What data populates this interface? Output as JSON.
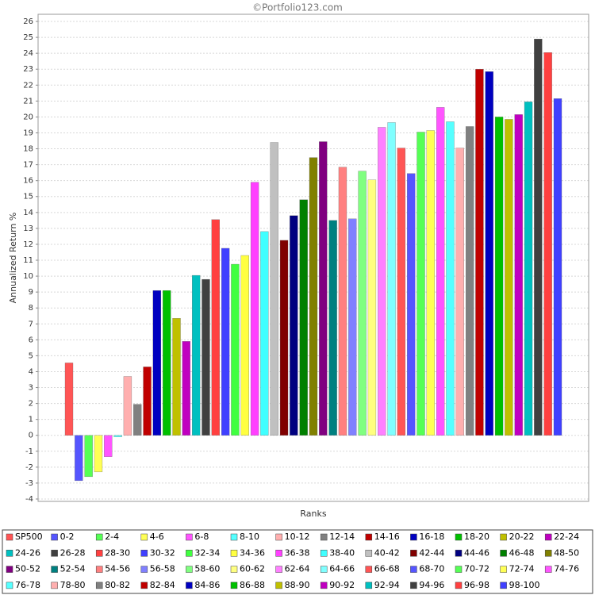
{
  "chart_data": {
    "type": "bar",
    "title": "©Portfolio123.com",
    "x_label": "Ranks",
    "y_label": "Annualized Return %",
    "categories": [
      "SP500",
      "0-2",
      "2-4",
      "4-6",
      "6-8",
      "8-10",
      "10-12",
      "12-14",
      "14-16",
      "16-18",
      "18-20",
      "20-22",
      "22-24",
      "24-26",
      "26-28",
      "28-30",
      "30-32",
      "32-34",
      "34-36",
      "36-38",
      "38-40",
      "40-42",
      "42-44",
      "44-46",
      "46-48",
      "48-50",
      "50-52",
      "52-54",
      "54-56",
      "56-58",
      "58-60",
      "60-62",
      "62-64",
      "64-66",
      "66-68",
      "68-70",
      "70-72",
      "72-74",
      "74-76",
      "76-78",
      "78-80",
      "80-82",
      "82-84",
      "84-86",
      "86-88",
      "88-90",
      "90-92",
      "92-94",
      "94-96",
      "96-98",
      "98-100"
    ],
    "values": [
      4.55,
      -2.85,
      -2.6,
      -2.3,
      -1.35,
      -0.1,
      3.7,
      1.95,
      4.3,
      9.1,
      9.1,
      7.35,
      5.9,
      10.05,
      9.8,
      13.55,
      11.75,
      10.75,
      11.3,
      15.9,
      12.8,
      18.4,
      12.25,
      13.8,
      14.8,
      17.45,
      18.45,
      13.5,
      16.85,
      13.6,
      16.6,
      16.05,
      19.35,
      19.65,
      18.05,
      16.45,
      19.05,
      19.15,
      20.6,
      19.7,
      18.05,
      19.4,
      23.0,
      22.85,
      20.0,
      19.85,
      20.15,
      20.95,
      24.9,
      24.05,
      21.15
    ],
    "colors": [
      "#FF5555",
      "#5555FF",
      "#55FF55",
      "#FFFF55",
      "#FF55FF",
      "#55FFFF",
      "#FFAFAF",
      "#808080",
      "#C00000",
      "#0000C0",
      "#00C000",
      "#C0C000",
      "#C000C0",
      "#00C0C0",
      "#404040",
      "#FF4040",
      "#4040FF",
      "#40FF40",
      "#FFFF40",
      "#FF40FF",
      "#40FFFF",
      "#C0C0C0",
      "#800000",
      "#000080",
      "#008000",
      "#808000",
      "#800080",
      "#008080",
      "#FF8080",
      "#8080FF",
      "#80FF80",
      "#FFFF80",
      "#FF80FF",
      "#80FFFF",
      "#FF5555",
      "#5555FF",
      "#55FF55",
      "#FFFF55",
      "#FF55FF",
      "#55FFFF",
      "#FFAFAF",
      "#808080",
      "#C00000",
      "#0000C0",
      "#00C000",
      "#C0C000",
      "#C000C0",
      "#00C0C0",
      "#404040",
      "#FF4040",
      "#4040FF"
    ],
    "ylim": [
      -4.15,
      26.45
    ],
    "yticks": [
      -4,
      -3,
      -2,
      -1,
      0,
      1,
      2,
      3,
      4,
      5,
      6,
      7,
      8,
      9,
      10,
      11,
      12,
      13,
      14,
      15,
      16,
      17,
      18,
      19,
      20,
      21,
      22,
      23,
      24,
      25,
      26
    ],
    "grid": true,
    "legend": "bottom"
  }
}
